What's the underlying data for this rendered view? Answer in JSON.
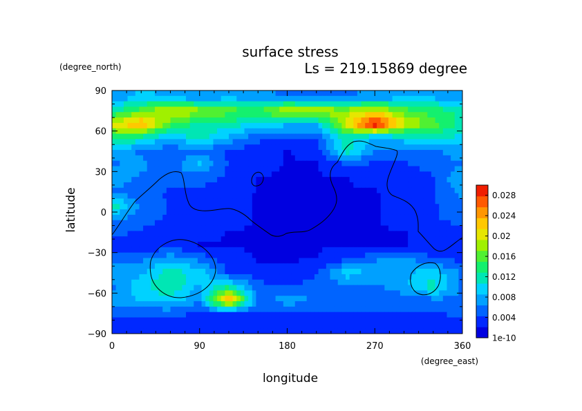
{
  "chart_data": {
    "type": "heatmap",
    "title": "surface stress",
    "subtitle": "Ls = 219.15869 degree",
    "xlabel": "longitude",
    "ylabel": "latitude",
    "x_unit": "(degree_east)",
    "y_unit": "(degree_north)",
    "xlim": [
      0,
      360
    ],
    "ylim": [
      -90,
      90
    ],
    "xticks": [
      "0",
      "90",
      "180",
      "270",
      "360"
    ],
    "yticks": [
      "90",
      "60",
      "30",
      "0",
      "−30",
      "−60",
      "−90"
    ],
    "colorbar": {
      "min": 1e-10,
      "max": 0.03,
      "ticks": [
        "0.028",
        "0.024",
        "0.02",
        "0.016",
        "0.012",
        "0.008",
        "0.004",
        "1e-10"
      ],
      "colors": [
        "#0000e0",
        "#0028ff",
        "#0064ff",
        "#00a0ff",
        "#00d2ff",
        "#00e6b4",
        "#14f06e",
        "#50f032",
        "#a0f000",
        "#e6e600",
        "#ffc800",
        "#ff9600",
        "#ff5a00",
        "#f01e00"
      ]
    },
    "grid": {
      "x": [
        0,
        30,
        60,
        90,
        120,
        150,
        180,
        210,
        240,
        270,
        300,
        330,
        360
      ],
      "y": [
        85,
        75,
        65,
        55,
        45,
        35,
        25,
        15,
        5,
        -5,
        -15,
        -25,
        -35,
        -45,
        -55,
        -65,
        -75,
        -85
      ]
    },
    "values": [
      [
        0.007,
        0.009,
        0.008,
        0.007,
        0.008,
        0.007,
        0.006,
        0.006,
        0.006,
        0.007,
        0.008,
        0.008,
        0.007
      ],
      [
        0.012,
        0.016,
        0.02,
        0.018,
        0.016,
        0.015,
        0.02,
        0.019,
        0.018,
        0.02,
        0.016,
        0.014,
        0.012
      ],
      [
        0.02,
        0.024,
        0.016,
        0.012,
        0.012,
        0.01,
        0.009,
        0.009,
        0.02,
        0.031,
        0.02,
        0.016,
        0.012
      ],
      [
        0.014,
        0.012,
        0.008,
        0.012,
        0.008,
        0.005,
        0.004,
        0.004,
        0.012,
        0.008,
        0.01,
        0.012,
        0.01
      ],
      [
        0.008,
        0.006,
        0.005,
        0.006,
        0.004,
        0.003,
        0.002,
        0.003,
        0.012,
        0.006,
        0.005,
        0.006,
        0.008
      ],
      [
        0.006,
        0.007,
        0.005,
        0.009,
        0.004,
        0.003,
        0.002,
        0.002,
        0.004,
        0.004,
        0.004,
        0.005,
        0.006
      ],
      [
        0.008,
        0.006,
        0.006,
        0.005,
        0.004,
        0.002,
        0.002,
        0.002,
        0.002,
        0.003,
        0.003,
        0.004,
        0.009
      ],
      [
        0.006,
        0.005,
        0.004,
        0.004,
        0.003,
        0.002,
        0.002,
        0.002,
        0.002,
        0.002,
        0.003,
        0.004,
        0.007
      ],
      [
        0.013,
        0.006,
        0.004,
        0.004,
        0.003,
        0.002,
        0.002,
        0.002,
        0.002,
        0.002,
        0.003,
        0.004,
        0.006
      ],
      [
        0.007,
        0.005,
        0.004,
        0.003,
        0.003,
        0.002,
        0.002,
        0.002,
        0.002,
        0.002,
        0.003,
        0.004,
        0.005
      ],
      [
        0.005,
        0.004,
        0.003,
        0.003,
        0.002,
        0.002,
        0.002,
        0.002,
        0.002,
        0.002,
        0.002,
        0.003,
        0.004
      ],
      [
        0.003,
        0.002,
        0.004,
        0.002,
        0.002,
        0.002,
        0.002,
        0.002,
        0.002,
        0.002,
        0.002,
        0.003,
        0.003
      ],
      [
        0.006,
        0.006,
        0.008,
        0.006,
        0.003,
        0.002,
        0.002,
        0.002,
        0.004,
        0.006,
        0.008,
        0.004,
        0.004
      ],
      [
        0.007,
        0.008,
        0.012,
        0.01,
        0.004,
        0.003,
        0.003,
        0.004,
        0.01,
        0.008,
        0.008,
        0.01,
        0.006
      ],
      [
        0.006,
        0.01,
        0.013,
        0.008,
        0.012,
        0.005,
        0.004,
        0.005,
        0.006,
        0.006,
        0.008,
        0.012,
        0.006
      ],
      [
        0.007,
        0.009,
        0.01,
        0.007,
        0.026,
        0.005,
        0.008,
        0.006,
        0.005,
        0.005,
        0.005,
        0.006,
        0.006
      ],
      [
        0.005,
        0.005,
        0.005,
        0.004,
        0.004,
        0.004,
        0.004,
        0.004,
        0.004,
        0.004,
        0.004,
        0.004,
        0.005
      ],
      [
        0.003,
        0.003,
        0.003,
        0.003,
        0.003,
        0.003,
        0.003,
        0.003,
        0.003,
        0.003,
        0.003,
        0.003,
        0.003
      ]
    ]
  }
}
